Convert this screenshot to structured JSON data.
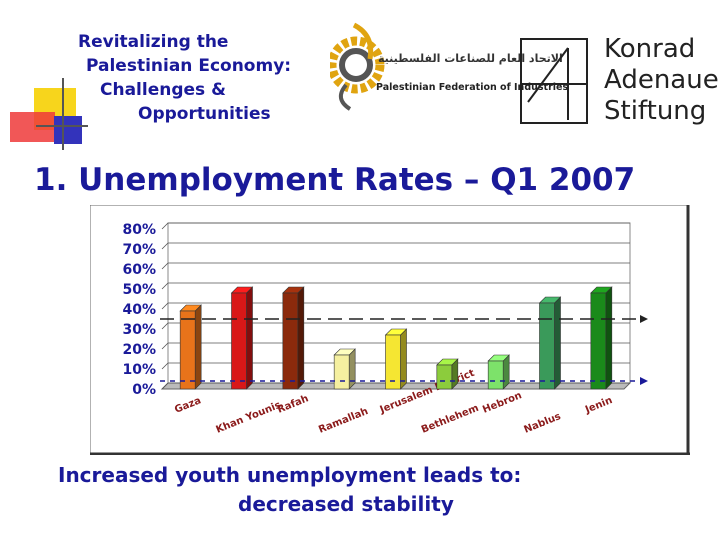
{
  "header": {
    "title_lines": [
      "Revitalizing the",
      "Palestinian Economy:",
      "Challenges &",
      "Opportunities"
    ],
    "pfi_logo": {
      "arabic": "الاتحاد العام للصناعات الفلسطينية",
      "english": "Palestinian Federation of Industries"
    },
    "kas_logo": {
      "lines": [
        "Konrad",
        "Adenauer",
        "Stiftung"
      ]
    }
  },
  "slide_title": "1.  Unemployment Rates – Q1 2007",
  "chart_data": {
    "type": "bar",
    "title": "",
    "xlabel": "",
    "ylabel": "",
    "categories": [
      "Gaza",
      "Khan Younis",
      "Rafah",
      "Ramallah",
      "Jerusalem District",
      "Bethlehem",
      "Hebron",
      "Nablus",
      "Jenin"
    ],
    "values": [
      39,
      48,
      48,
      17,
      27,
      12,
      14,
      43,
      48
    ],
    "colors": [
      "#e8731a",
      "#d81818",
      "#8b2a0c",
      "#f5f0a0",
      "#f5e632",
      "#8ccc3c",
      "#7de26a",
      "#3a9a5a",
      "#1a8a1a"
    ],
    "ylim": [
      0,
      80
    ],
    "yticks": [
      "0%",
      "10%",
      "20%",
      "30%",
      "40%",
      "50%",
      "60%",
      "70%",
      "80%"
    ],
    "reference_lines": [
      {
        "value": 35,
        "style": "long-dash",
        "color": "#222222"
      },
      {
        "value": 4,
        "style": "short-dash",
        "color": "#1a1a99"
      }
    ],
    "grid": true
  },
  "footer": {
    "line1": "Increased youth unemployment leads to:",
    "line2": "decreased stability"
  }
}
